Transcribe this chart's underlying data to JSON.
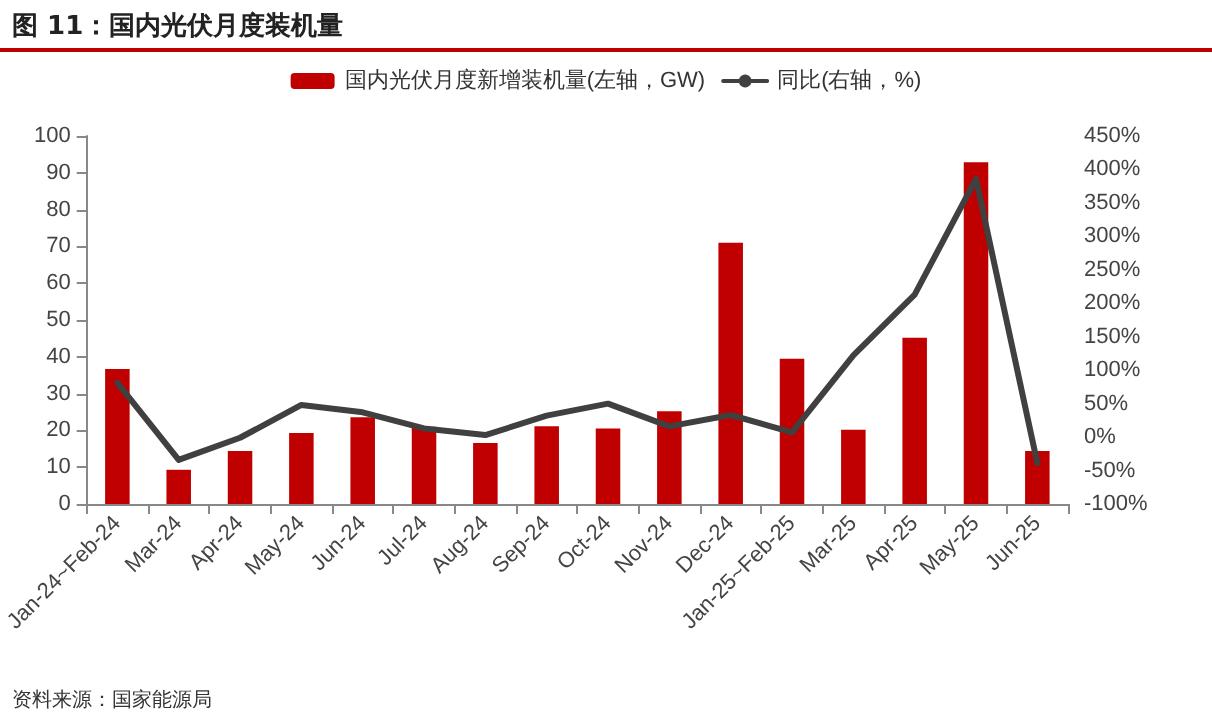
{
  "chart_data": {
    "type": "bar",
    "title": "图 11：国内光伏月度装机量",
    "categories": [
      "Jan-24~Feb-24",
      "Mar-24",
      "Apr-24",
      "May-24",
      "Jun-24",
      "Jul-24",
      "Aug-24",
      "Sep-24",
      "Oct-24",
      "Nov-24",
      "Dec-24",
      "Jan-25~Feb-25",
      "Mar-25",
      "Apr-25",
      "May-25",
      "Jun-25"
    ],
    "series": [
      {
        "name": "国内光伏月度新增装机量(左轴，GW)",
        "color": "#c00000",
        "values": [
          36.7,
          9.3,
          14.4,
          19.3,
          23.6,
          21.0,
          16.6,
          21.1,
          20.5,
          25.2,
          71.0,
          39.5,
          20.2,
          45.2,
          92.9,
          14.4
        ]
      },
      {
        "name": "同比(右轴，%)",
        "type": "line",
        "axis": "y2",
        "color": "#404040",
        "values": [
          81,
          -34,
          -1,
          48,
          37,
          13,
          3,
          32,
          50,
          16,
          33,
          7,
          122,
          213,
          386,
          -39
        ]
      }
    ],
    "ylim": [
      0,
      100
    ],
    "yticks": [
      0,
      10,
      20,
      30,
      40,
      50,
      60,
      70,
      80,
      90,
      100
    ],
    "y2lim": [
      -100,
      450
    ],
    "y2ticks": [
      {
        "value": -100,
        "label": "-100%"
      },
      {
        "value": -50,
        "label": "-50%"
      },
      {
        "value": 0,
        "label": "0%"
      },
      {
        "value": 50,
        "label": "50%"
      },
      {
        "value": 100,
        "label": "100%"
      },
      {
        "value": 150,
        "label": "150%"
      },
      {
        "value": 200,
        "label": "200%"
      },
      {
        "value": 250,
        "label": "250%"
      },
      {
        "value": 300,
        "label": "300%"
      },
      {
        "value": 350,
        "label": "350%"
      },
      {
        "value": 400,
        "label": "400%"
      },
      {
        "value": 450,
        "label": "450%"
      }
    ],
    "legend": "top",
    "grid": false,
    "marker": "none",
    "line_style": "solid",
    "annotations": [
      "资料来源：国家能源局"
    ]
  }
}
